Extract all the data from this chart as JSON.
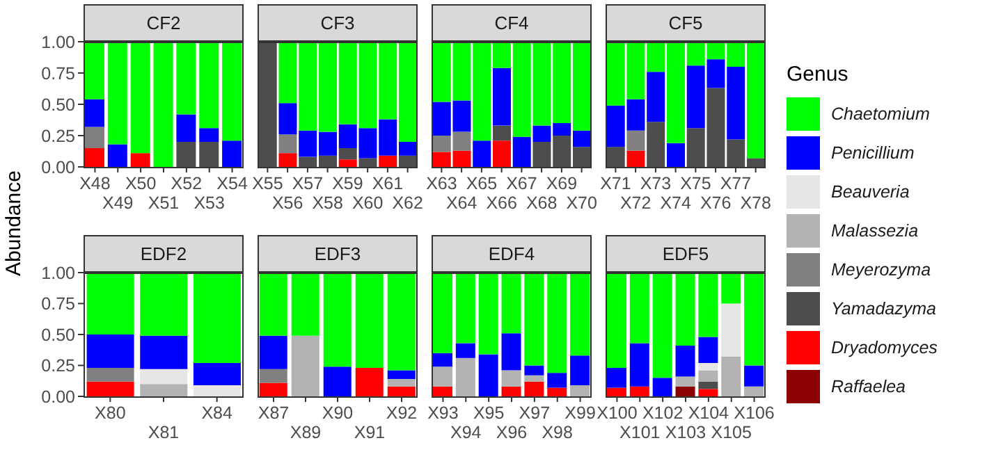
{
  "chart_data": [
    {
      "type": "bar",
      "stacked": true,
      "title": "CF2",
      "ylabel": "Abundance",
      "legend": "right",
      "legend_title": "Genus",
      "categories": [
        "X48",
        "X49",
        "X50",
        "X51",
        "X52",
        "X53",
        "X54"
      ],
      "ylim": [
        0,
        1
      ],
      "yticks": [
        {
          "value": 0,
          "label": "0.00"
        },
        {
          "value": 0.25,
          "label": "0.25"
        },
        {
          "value": 0.5,
          "label": "0.50"
        },
        {
          "value": 0.75,
          "label": "0.75"
        },
        {
          "value": 1,
          "label": "1.00"
        }
      ],
      "series": [
        {
          "name": "Raffaelea",
          "color": "#8b0000",
          "values": [
            null,
            null,
            null,
            null,
            null,
            null,
            null
          ]
        },
        {
          "name": "Dryadomyces",
          "color": "#ff0000",
          "values": [
            0.15,
            null,
            0.11,
            null,
            null,
            null,
            null
          ]
        },
        {
          "name": "Yamadazyma",
          "color": "#4d4d4d",
          "values": [
            null,
            null,
            null,
            null,
            0.2,
            0.2,
            null
          ]
        },
        {
          "name": "Meyerozyma",
          "color": "#808080",
          "values": [
            0.17,
            null,
            null,
            null,
            null,
            null,
            null
          ]
        },
        {
          "name": "Malassezia",
          "color": "#b3b3b3",
          "values": [
            null,
            null,
            null,
            null,
            null,
            null,
            null
          ]
        },
        {
          "name": "Beauveria",
          "color": "#e6e6e6",
          "values": [
            null,
            null,
            null,
            null,
            null,
            null,
            null
          ]
        },
        {
          "name": "Penicillium",
          "color": "#0000ff",
          "values": [
            0.22,
            0.18,
            null,
            null,
            0.22,
            0.11,
            0.21
          ]
        },
        {
          "name": "Chaetomium",
          "color": "#00ff00",
          "values": [
            0.46,
            0.82,
            0.89,
            1,
            0.58,
            0.69,
            0.79
          ]
        }
      ]
    },
    {
      "type": "bar",
      "stacked": true,
      "title": "CF3",
      "tick_labels": "x",
      "categories": [
        "X55",
        "X56",
        "X57",
        "X58",
        "X59",
        "X60",
        "X61",
        "X62"
      ],
      "ylim": [
        0,
        1
      ],
      "series": [
        {
          "color": "#8b0000",
          "values": [
            null,
            null,
            null,
            null,
            null,
            null,
            null,
            null
          ]
        },
        {
          "color": "#ff0000",
          "values": [
            null,
            0.11,
            null,
            null,
            0.06,
            null,
            0.09,
            null
          ]
        },
        {
          "color": "#4d4d4d",
          "values": [
            1,
            null,
            0.08,
            0.09,
            0.09,
            0.07,
            null,
            0.09
          ]
        },
        {
          "color": "#808080",
          "values": [
            null,
            0.15,
            null,
            null,
            null,
            null,
            null,
            null
          ]
        },
        {
          "color": "#b3b3b3",
          "values": [
            null,
            null,
            null,
            null,
            null,
            null,
            null,
            null
          ]
        },
        {
          "color": "#e6e6e6",
          "values": [
            null,
            null,
            null,
            null,
            null,
            null,
            null,
            null
          ]
        },
        {
          "color": "#0000ff",
          "values": [
            null,
            0.25,
            0.21,
            0.19,
            0.19,
            0.24,
            0.29,
            0.11
          ]
        },
        {
          "color": "#00ff00",
          "values": [
            null,
            0.49,
            0.71,
            0.72,
            0.66,
            0.69,
            0.62,
            0.8
          ]
        }
      ]
    },
    {
      "type": "bar",
      "stacked": true,
      "title": "CF4",
      "tick_labels": "x",
      "categories": [
        "X63",
        "X64",
        "X65",
        "X66",
        "X67",
        "X68",
        "X69",
        "X70"
      ],
      "ylim": [
        0,
        1
      ],
      "series": [
        {
          "color": "#8b0000",
          "values": [
            null,
            null,
            null,
            null,
            null,
            null,
            null,
            null
          ]
        },
        {
          "color": "#ff0000",
          "values": [
            0.12,
            0.13,
            null,
            0.21,
            null,
            null,
            null,
            null
          ]
        },
        {
          "color": "#4d4d4d",
          "values": [
            null,
            null,
            null,
            0.12,
            null,
            0.2,
            0.25,
            0.16
          ]
        },
        {
          "color": "#808080",
          "values": [
            0.13,
            0.15,
            null,
            null,
            null,
            null,
            null,
            null
          ]
        },
        {
          "color": "#b3b3b3",
          "values": [
            null,
            null,
            null,
            null,
            null,
            null,
            null,
            null
          ]
        },
        {
          "color": "#e6e6e6",
          "values": [
            null,
            null,
            null,
            null,
            null,
            null,
            null,
            null
          ]
        },
        {
          "color": "#0000ff",
          "values": [
            0.27,
            0.25,
            0.21,
            0.46,
            0.24,
            0.13,
            0.1,
            0.13
          ]
        },
        {
          "color": "#00ff00",
          "values": [
            0.48,
            0.47,
            0.79,
            0.21,
            0.76,
            0.67,
            0.65,
            0.71
          ]
        }
      ]
    },
    {
      "type": "bar",
      "stacked": true,
      "title": "CF5",
      "tick_labels": "x",
      "categories": [
        "X71",
        "X72",
        "X73",
        "X74",
        "X75",
        "X76",
        "X77",
        "X78"
      ],
      "ylim": [
        0,
        1
      ],
      "series": [
        {
          "color": "#8b0000",
          "values": [
            null,
            null,
            null,
            null,
            null,
            null,
            null,
            null
          ]
        },
        {
          "color": "#ff0000",
          "values": [
            null,
            0.13,
            null,
            null,
            null,
            null,
            null,
            null
          ]
        },
        {
          "color": "#4d4d4d",
          "values": [
            0.16,
            null,
            0.36,
            null,
            0.31,
            0.63,
            0.22,
            0.07
          ]
        },
        {
          "color": "#808080",
          "values": [
            null,
            0.16,
            null,
            null,
            null,
            null,
            null,
            null
          ]
        },
        {
          "color": "#b3b3b3",
          "values": [
            null,
            null,
            null,
            null,
            null,
            null,
            null,
            null
          ]
        },
        {
          "color": "#e6e6e6",
          "values": [
            null,
            null,
            null,
            null,
            null,
            null,
            null,
            null
          ]
        },
        {
          "color": "#0000ff",
          "values": [
            0.33,
            0.25,
            0.4,
            0.19,
            0.5,
            0.23,
            0.58,
            null
          ]
        },
        {
          "color": "#00ff00",
          "values": [
            0.51,
            0.46,
            0.24,
            0.81,
            0.19,
            0.14,
            0.2,
            0.93
          ]
        }
      ]
    },
    {
      "type": "bar",
      "stacked": true,
      "title": "EDF2",
      "categories": [
        "X80",
        "X81",
        "X84"
      ],
      "ylim": [
        0,
        1
      ],
      "yticks": [
        {
          "value": 0,
          "label": "0.00"
        },
        {
          "value": 0.25,
          "label": "0.25"
        },
        {
          "value": 0.5,
          "label": "0.50"
        },
        {
          "value": 0.75,
          "label": "0.75"
        },
        {
          "value": 1,
          "label": "1.00"
        }
      ],
      "series": [
        {
          "color": "#8b0000",
          "values": [
            null,
            null,
            null
          ]
        },
        {
          "color": "#ff0000",
          "values": [
            0.12,
            null,
            null
          ]
        },
        {
          "color": "#4d4d4d",
          "values": [
            null,
            null,
            null
          ]
        },
        {
          "color": "#808080",
          "values": [
            0.11,
            null,
            null
          ]
        },
        {
          "color": "#b3b3b3",
          "values": [
            null,
            0.1,
            null
          ]
        },
        {
          "color": "#e6e6e6",
          "values": [
            null,
            0.12,
            0.09
          ]
        },
        {
          "color": "#0000ff",
          "values": [
            0.27,
            0.27,
            0.18
          ]
        },
        {
          "color": "#00ff00",
          "values": [
            0.5,
            0.51,
            0.73
          ]
        }
      ]
    },
    {
      "type": "bar",
      "stacked": true,
      "title": "EDF3",
      "tick_labels": "x",
      "categories": [
        "X87",
        "X89",
        "X90",
        "X91",
        "X92"
      ],
      "ylim": [
        0,
        1
      ],
      "series": [
        {
          "color": "#8b0000",
          "values": [
            null,
            null,
            null,
            null,
            null
          ]
        },
        {
          "color": "#ff0000",
          "values": [
            0.11,
            null,
            null,
            0.23,
            0.08
          ]
        },
        {
          "color": "#4d4d4d",
          "values": [
            null,
            null,
            null,
            null,
            null
          ]
        },
        {
          "color": "#808080",
          "values": [
            0.11,
            null,
            null,
            null,
            null
          ]
        },
        {
          "color": "#b3b3b3",
          "values": [
            null,
            0.49,
            null,
            null,
            0.06
          ]
        },
        {
          "color": "#e6e6e6",
          "values": [
            null,
            null,
            null,
            null,
            null
          ]
        },
        {
          "color": "#0000ff",
          "values": [
            0.27,
            null,
            0.24,
            null,
            0.07
          ]
        },
        {
          "color": "#00ff00",
          "values": [
            0.51,
            0.51,
            0.76,
            0.77,
            0.79
          ]
        }
      ]
    },
    {
      "type": "bar",
      "stacked": true,
      "title": "EDF4",
      "tick_labels": "x",
      "categories": [
        "X93",
        "X94",
        "X95",
        "X96",
        "X97",
        "X98",
        "X99"
      ],
      "ylim": [
        0,
        1
      ],
      "series": [
        {
          "color": "#8b0000",
          "values": [
            null,
            null,
            null,
            null,
            null,
            null,
            null
          ]
        },
        {
          "color": "#ff0000",
          "values": [
            0.08,
            null,
            null,
            0.08,
            0.12,
            0.07,
            null
          ]
        },
        {
          "color": "#4d4d4d",
          "values": [
            null,
            null,
            null,
            null,
            null,
            null,
            null
          ]
        },
        {
          "color": "#808080",
          "values": [
            null,
            null,
            null,
            null,
            null,
            null,
            null
          ]
        },
        {
          "color": "#b3b3b3",
          "values": [
            0.16,
            0.31,
            null,
            0.13,
            0.05,
            null,
            0.09
          ]
        },
        {
          "color": "#e6e6e6",
          "values": [
            null,
            null,
            null,
            null,
            null,
            null,
            null
          ]
        },
        {
          "color": "#0000ff",
          "values": [
            0.11,
            0.12,
            0.34,
            0.3,
            0.08,
            0.12,
            0.24
          ]
        },
        {
          "color": "#00ff00",
          "values": [
            0.65,
            0.57,
            0.66,
            0.49,
            0.75,
            0.81,
            0.67
          ]
        }
      ]
    },
    {
      "type": "bar",
      "stacked": true,
      "title": "EDF5",
      "tick_labels": "x",
      "categories": [
        "X100",
        "X101",
        "X102",
        "X103",
        "X104",
        "X105",
        "X106"
      ],
      "ylim": [
        0,
        1
      ],
      "series": [
        {
          "color": "#8b0000",
          "values": [
            null,
            null,
            null,
            0.08,
            null,
            null,
            null
          ]
        },
        {
          "color": "#ff0000",
          "values": [
            0.07,
            0.08,
            null,
            null,
            0.06,
            null,
            null
          ]
        },
        {
          "color": "#4d4d4d",
          "values": [
            null,
            null,
            null,
            null,
            0.06,
            null,
            null
          ]
        },
        {
          "color": "#808080",
          "values": [
            null,
            null,
            null,
            null,
            null,
            null,
            null
          ]
        },
        {
          "color": "#b3b3b3",
          "values": [
            null,
            null,
            null,
            0.08,
            0.09,
            0.32,
            0.08
          ]
        },
        {
          "color": "#e6e6e6",
          "values": [
            null,
            null,
            null,
            null,
            0.06,
            0.43,
            null
          ]
        },
        {
          "color": "#0000ff",
          "values": [
            0.16,
            0.35,
            0.15,
            0.25,
            0.21,
            null,
            0.17
          ]
        },
        {
          "color": "#00ff00",
          "values": [
            0.77,
            0.57,
            0.85,
            0.59,
            0.52,
            0.25,
            0.75
          ]
        }
      ]
    }
  ]
}
